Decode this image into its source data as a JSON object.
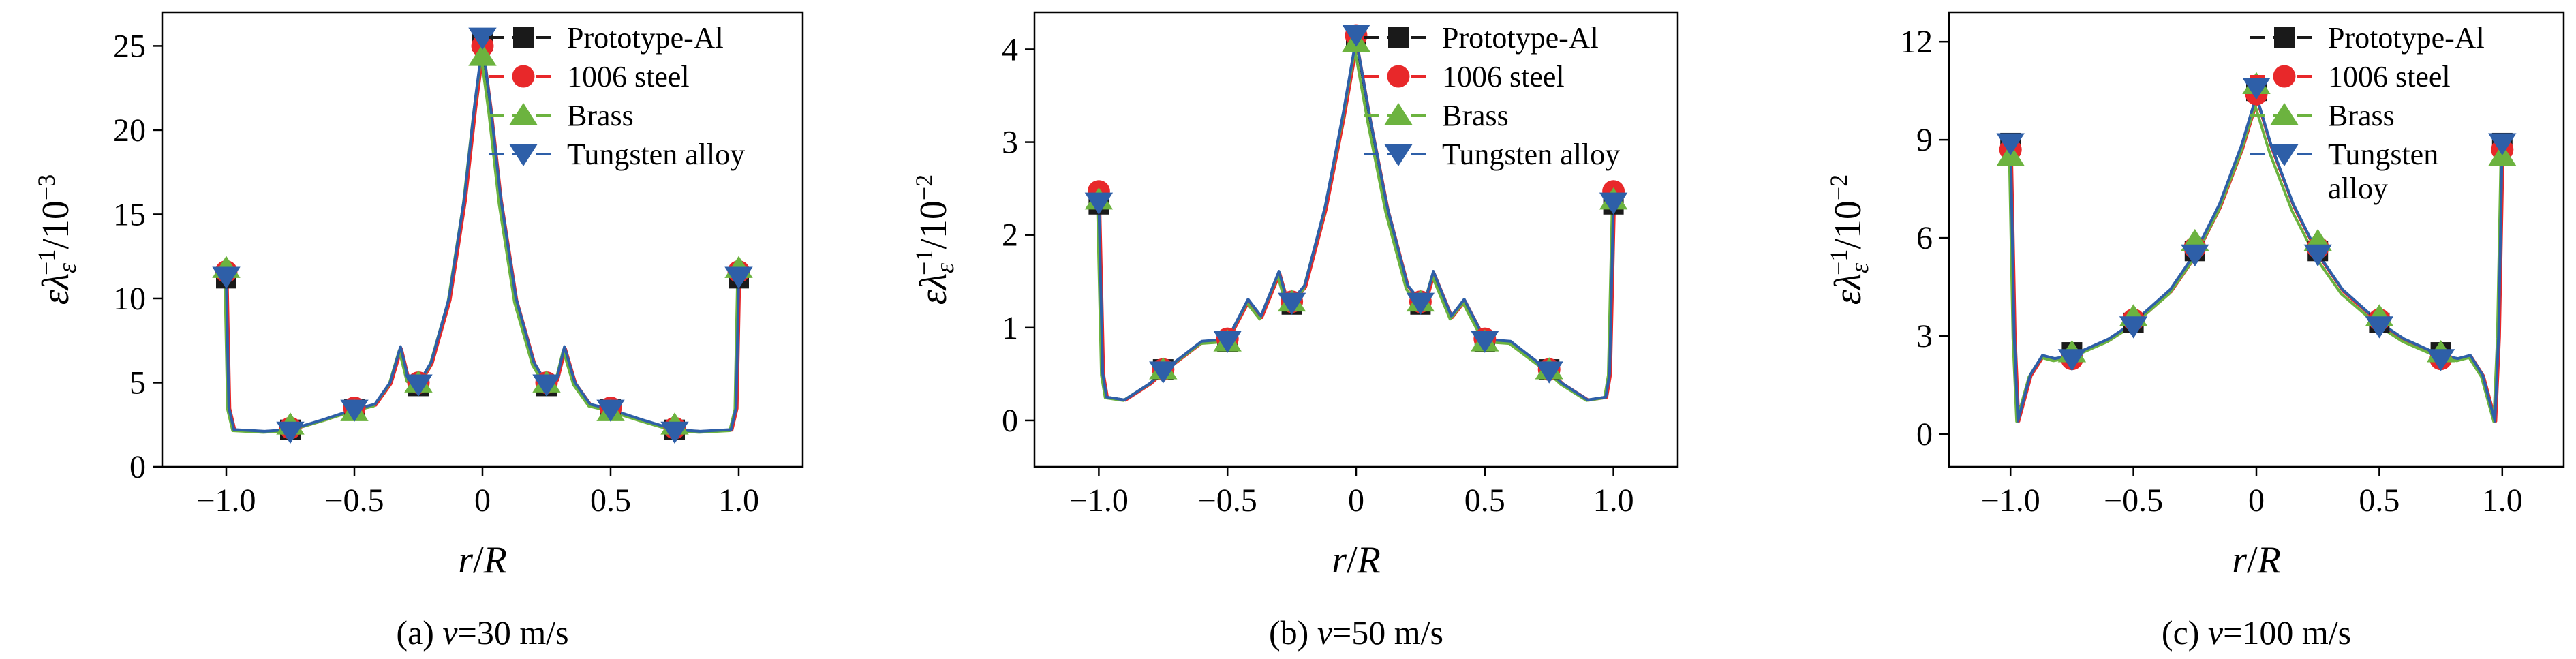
{
  "colors": {
    "Prototype-Al": "#1a1a1a",
    "1006 steel": "#e8282a",
    "Brass": "#6cb33f",
    "Tungsten alloy": "#2e5fa8"
  },
  "chart_data": [
    {
      "type": "line",
      "caption": "(a) v=30 m/s",
      "xlabel": "r/R",
      "ylabel": "ελε⁻¹/10⁻³",
      "xlim": [
        -1.25,
        1.25
      ],
      "ylim": [
        0,
        27
      ],
      "xticks": [
        -1.0,
        -0.5,
        0,
        0.5,
        1.0
      ],
      "xtick_labels": [
        "−1.0",
        "−0.5",
        "0",
        "0.5",
        "1.0"
      ],
      "yticks": [
        0,
        5,
        10,
        15,
        20,
        25
      ],
      "ytick_labels": [
        "0",
        "5",
        "10",
        "15",
        "20",
        "25"
      ],
      "legend": [
        "Prototype-Al",
        "1006 steel",
        "Brass",
        "Tungsten alloy"
      ],
      "legend_position": "top-right",
      "marker_x": [
        -1,
        -0.75,
        -0.5,
        -0.25,
        0,
        0.25,
        0.5,
        0.75,
        1
      ],
      "series": [
        {
          "name": "Prototype-Al",
          "marker": "square",
          "markers": [
            11.2,
            2.2,
            3.4,
            4.8,
            25.3,
            4.8,
            3.4,
            2.2,
            11.2
          ]
        },
        {
          "name": "1006 steel",
          "marker": "circle",
          "markers": [
            11.6,
            2.3,
            3.5,
            5.0,
            25.0,
            5.0,
            3.5,
            2.3,
            11.6
          ]
        },
        {
          "name": "Brass",
          "marker": "triangle-up",
          "markers": [
            11.8,
            2.5,
            3.3,
            5.0,
            24.4,
            5.0,
            3.3,
            2.5,
            11.8
          ]
        },
        {
          "name": "Tungsten alloy",
          "marker": "triangle-down",
          "markers": [
            11.3,
            2.1,
            3.4,
            4.9,
            25.5,
            4.9,
            3.4,
            2.1,
            11.3
          ]
        }
      ],
      "curve": [
        [
          -1,
          11.2
        ],
        [
          -0.99,
          3.5
        ],
        [
          -0.97,
          2.2
        ],
        [
          -0.85,
          2.1
        ],
        [
          -0.75,
          2.2
        ],
        [
          -0.62,
          2.8
        ],
        [
          -0.5,
          3.4
        ],
        [
          -0.42,
          3.7
        ],
        [
          -0.36,
          5.0
        ],
        [
          -0.32,
          7.1
        ],
        [
          -0.29,
          5.2
        ],
        [
          -0.25,
          4.9
        ],
        [
          -0.2,
          6.2
        ],
        [
          -0.13,
          10.0
        ],
        [
          -0.07,
          16.0
        ],
        [
          -0.03,
          21.5
        ],
        [
          0,
          25.0
        ],
        [
          0.03,
          21.5
        ],
        [
          0.07,
          16.0
        ],
        [
          0.13,
          10.0
        ],
        [
          0.2,
          6.2
        ],
        [
          0.25,
          4.9
        ],
        [
          0.29,
          5.2
        ],
        [
          0.32,
          7.1
        ],
        [
          0.36,
          5.0
        ],
        [
          0.42,
          3.7
        ],
        [
          0.5,
          3.4
        ],
        [
          0.62,
          2.8
        ],
        [
          0.75,
          2.2
        ],
        [
          0.85,
          2.1
        ],
        [
          0.97,
          2.2
        ],
        [
          0.99,
          3.5
        ],
        [
          1,
          11.2
        ]
      ]
    },
    {
      "type": "line",
      "caption": "(b) v=50 m/s",
      "xlabel": "r/R",
      "ylabel": "ελε⁻¹/10⁻²",
      "xlim": [
        -1.25,
        1.25
      ],
      "ylim": [
        -0.5,
        4.4
      ],
      "xticks": [
        -1.0,
        -0.5,
        0,
        0.5,
        1.0
      ],
      "xtick_labels": [
        "−1.0",
        "−0.5",
        "0",
        "0.5",
        "1.0"
      ],
      "yticks": [
        0,
        1,
        2,
        3,
        4
      ],
      "ytick_labels": [
        "0",
        "1",
        "2",
        "3",
        "4"
      ],
      "legend": [
        "Prototype-Al",
        "1006 steel",
        "Brass",
        "Tungsten alloy"
      ],
      "legend_position": "top-right",
      "marker_x": [
        -1,
        -0.75,
        -0.5,
        -0.25,
        0,
        0.25,
        0.5,
        0.75,
        1
      ],
      "series": [
        {
          "name": "Prototype-Al",
          "marker": "square",
          "markers": [
            2.33,
            0.55,
            0.85,
            1.25,
            4.15,
            1.25,
            0.85,
            0.55,
            2.33
          ]
        },
        {
          "name": "1006 steel",
          "marker": "circle",
          "markers": [
            2.47,
            0.55,
            0.88,
            1.28,
            4.15,
            1.28,
            0.88,
            0.55,
            2.47
          ]
        },
        {
          "name": "Brass",
          "marker": "triangle-up",
          "markers": [
            2.38,
            0.55,
            0.85,
            1.28,
            4.08,
            1.28,
            0.85,
            0.55,
            2.38
          ]
        },
        {
          "name": "Tungsten alloy",
          "marker": "triangle-down",
          "markers": [
            2.35,
            0.53,
            0.86,
            1.27,
            4.16,
            1.27,
            0.86,
            0.53,
            2.35
          ]
        }
      ],
      "curve": [
        [
          -1,
          2.35
        ],
        [
          -0.985,
          0.5
        ],
        [
          -0.97,
          0.25
        ],
        [
          -0.9,
          0.22
        ],
        [
          -0.8,
          0.4
        ],
        [
          -0.75,
          0.53
        ],
        [
          -0.6,
          0.85
        ],
        [
          -0.5,
          0.87
        ],
        [
          -0.42,
          1.3
        ],
        [
          -0.37,
          1.12
        ],
        [
          -0.3,
          1.6
        ],
        [
          -0.27,
          1.3
        ],
        [
          -0.25,
          1.28
        ],
        [
          -0.2,
          1.45
        ],
        [
          -0.12,
          2.3
        ],
        [
          -0.05,
          3.3
        ],
        [
          0,
          4.1
        ],
        [
          0.05,
          3.3
        ],
        [
          0.12,
          2.3
        ],
        [
          0.2,
          1.45
        ],
        [
          0.25,
          1.28
        ],
        [
          0.27,
          1.3
        ],
        [
          0.3,
          1.6
        ],
        [
          0.37,
          1.12
        ],
        [
          0.42,
          1.3
        ],
        [
          0.5,
          0.87
        ],
        [
          0.6,
          0.85
        ],
        [
          0.75,
          0.53
        ],
        [
          0.8,
          0.4
        ],
        [
          0.9,
          0.22
        ],
        [
          0.97,
          0.25
        ],
        [
          0.985,
          0.5
        ],
        [
          1,
          2.35
        ]
      ]
    },
    {
      "type": "line",
      "caption": "(c) v=100 m/s",
      "xlabel": "r/R",
      "ylabel": "ελε⁻¹/10⁻²",
      "xlim": [
        -1.25,
        1.25
      ],
      "ylim": [
        -1,
        12.9
      ],
      "xticks": [
        -1.0,
        -0.5,
        0,
        0.5,
        1.0
      ],
      "xtick_labels": [
        "−1.0",
        "−0.5",
        "0",
        "0.5",
        "1.0"
      ],
      "yticks": [
        0,
        3,
        6,
        9,
        12
      ],
      "ytick_labels": [
        "0",
        "3",
        "6",
        "9",
        "12"
      ],
      "legend": [
        "Prototype-Al",
        "1006 steel",
        "Brass",
        "Tungsten alloy"
      ],
      "legend_lines": [
        [
          "Prototype-Al"
        ],
        [
          "1006 steel"
        ],
        [
          "Brass"
        ],
        [
          "Tungsten",
          "alloy"
        ]
      ],
      "legend_position": "top-right",
      "marker_x": [
        -1,
        -0.75,
        -0.5,
        -0.25,
        0,
        0.25,
        0.5,
        0.75,
        1
      ],
      "series": [
        {
          "name": "Prototype-Al",
          "marker": "square",
          "markers": [
            8.9,
            2.5,
            3.4,
            5.6,
            10.5,
            5.6,
            3.4,
            2.5,
            8.9
          ]
        },
        {
          "name": "1006 steel",
          "marker": "circle",
          "markers": [
            8.7,
            2.3,
            3.5,
            5.7,
            10.4,
            5.7,
            3.5,
            2.3,
            8.7
          ]
        },
        {
          "name": "Brass",
          "marker": "triangle-up",
          "markers": [
            8.5,
            2.5,
            3.6,
            5.9,
            10.7,
            5.9,
            3.6,
            2.5,
            8.5
          ]
        },
        {
          "name": "Tungsten alloy",
          "marker": "triangle-down",
          "markers": [
            8.9,
            2.3,
            3.3,
            5.5,
            10.6,
            5.5,
            3.3,
            2.3,
            8.9
          ]
        }
      ],
      "curve": [
        [
          -1,
          8.9
        ],
        [
          -0.985,
          3.0
        ],
        [
          -0.97,
          0.4
        ],
        [
          -0.92,
          1.8
        ],
        [
          -0.87,
          2.4
        ],
        [
          -0.82,
          2.3
        ],
        [
          -0.75,
          2.4
        ],
        [
          -0.6,
          2.9
        ],
        [
          -0.5,
          3.4
        ],
        [
          -0.35,
          4.4
        ],
        [
          -0.25,
          5.5
        ],
        [
          -0.15,
          7.0
        ],
        [
          -0.06,
          8.8
        ],
        [
          0,
          10.3
        ],
        [
          0.06,
          8.8
        ],
        [
          0.15,
          7.0
        ],
        [
          0.25,
          5.5
        ],
        [
          0.35,
          4.4
        ],
        [
          0.5,
          3.4
        ],
        [
          0.6,
          2.9
        ],
        [
          0.75,
          2.4
        ],
        [
          0.82,
          2.3
        ],
        [
          0.87,
          2.4
        ],
        [
          0.92,
          1.8
        ],
        [
          0.97,
          0.4
        ],
        [
          0.985,
          3.0
        ],
        [
          1,
          8.9
        ]
      ]
    }
  ]
}
